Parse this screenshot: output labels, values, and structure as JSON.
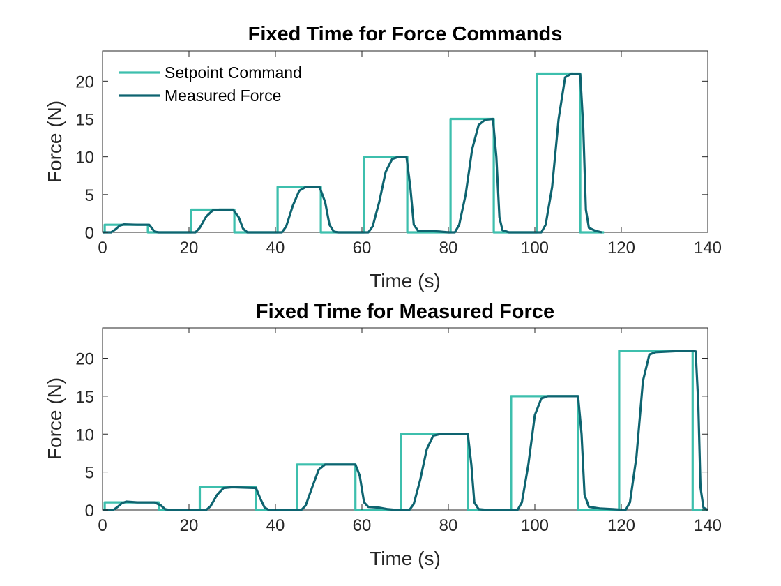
{
  "colors": {
    "setpoint": "#3DBFAD",
    "measured": "#0E6470"
  },
  "chart_data": [
    {
      "type": "line",
      "title": "Fixed Time for Force Commands",
      "xlabel": "Time (s)",
      "ylabel": "Force (N)",
      "xlim": [
        0,
        140
      ],
      "ylim": [
        0,
        24
      ],
      "xticks": [
        0,
        20,
        40,
        60,
        80,
        100,
        120,
        140
      ],
      "yticks": [
        0,
        5,
        10,
        15,
        20
      ],
      "xtick_labels": [
        "0",
        "20",
        "40",
        "60",
        "80",
        "100",
        "120",
        "140"
      ],
      "ytick_labels": [
        "0",
        "5",
        "10",
        "15",
        "20"
      ],
      "grid": false,
      "legend": {
        "position": "top-left",
        "entries": [
          "Setpoint Command",
          "Measured Force"
        ]
      },
      "series": [
        {
          "name": "Setpoint Command",
          "points": [
            [
              0,
              0
            ],
            [
              0.5,
              0
            ],
            [
              0.5,
              1
            ],
            [
              10.5,
              1
            ],
            [
              10.5,
              0
            ],
            [
              20.5,
              0
            ],
            [
              20.5,
              3
            ],
            [
              30.5,
              3
            ],
            [
              30.5,
              0
            ],
            [
              40.5,
              0
            ],
            [
              40.5,
              6
            ],
            [
              50.5,
              6
            ],
            [
              50.5,
              0
            ],
            [
              60.5,
              0
            ],
            [
              60.5,
              10
            ],
            [
              70.5,
              10
            ],
            [
              70.5,
              0
            ],
            [
              80.5,
              0
            ],
            [
              80.5,
              15
            ],
            [
              90.5,
              15
            ],
            [
              90.5,
              0
            ],
            [
              100.5,
              0
            ],
            [
              100.5,
              21
            ],
            [
              110.5,
              21
            ],
            [
              110.5,
              0
            ],
            [
              116,
              0
            ]
          ]
        },
        {
          "name": "Measured Force",
          "points": [
            [
              0,
              0
            ],
            [
              2,
              0
            ],
            [
              3,
              0.4
            ],
            [
              4,
              0.9
            ],
            [
              5,
              1.05
            ],
            [
              8,
              1
            ],
            [
              10.8,
              1
            ],
            [
              11.5,
              0.5
            ],
            [
              12,
              0.1
            ],
            [
              13,
              0
            ],
            [
              20,
              0
            ],
            [
              21.5,
              0
            ],
            [
              22.5,
              0.6
            ],
            [
              24,
              2.1
            ],
            [
              25.5,
              2.9
            ],
            [
              27,
              3
            ],
            [
              30.2,
              3
            ],
            [
              31.5,
              2
            ],
            [
              32.5,
              0.5
            ],
            [
              33.5,
              0
            ],
            [
              40,
              0
            ],
            [
              41.5,
              0
            ],
            [
              42.5,
              0.8
            ],
            [
              44,
              3.5
            ],
            [
              45.5,
              5.5
            ],
            [
              47,
              6
            ],
            [
              50.2,
              6
            ],
            [
              51.5,
              4
            ],
            [
              52.5,
              1
            ],
            [
              53.5,
              0.1
            ],
            [
              54.5,
              0
            ],
            [
              60,
              0
            ],
            [
              61.5,
              0
            ],
            [
              62.5,
              0.8
            ],
            [
              64,
              4
            ],
            [
              65.5,
              8
            ],
            [
              67,
              9.7
            ],
            [
              68.5,
              10
            ],
            [
              70.3,
              10
            ],
            [
              71.2,
              6
            ],
            [
              72,
              1
            ],
            [
              73,
              0.2
            ],
            [
              75,
              0.2
            ],
            [
              78,
              0.1
            ],
            [
              80,
              0
            ],
            [
              81.5,
              0
            ],
            [
              82.5,
              1
            ],
            [
              84,
              5
            ],
            [
              85.5,
              11
            ],
            [
              87,
              14.2
            ],
            [
              88.5,
              14.9
            ],
            [
              90.3,
              15
            ],
            [
              91.1,
              10
            ],
            [
              91.8,
              2
            ],
            [
              92.5,
              0.3
            ],
            [
              94,
              0
            ],
            [
              100,
              0
            ],
            [
              101.5,
              0
            ],
            [
              102.5,
              1
            ],
            [
              104,
              6
            ],
            [
              105.5,
              15
            ],
            [
              107,
              20.5
            ],
            [
              108.5,
              21
            ],
            [
              110.5,
              20.9
            ],
            [
              111.2,
              14
            ],
            [
              111.8,
              3
            ],
            [
              112.5,
              0.6
            ],
            [
              114,
              0.2
            ],
            [
              115.5,
              0
            ]
          ]
        }
      ]
    },
    {
      "type": "line",
      "title": "Fixed Time for Measured Force",
      "xlabel": "Time (s)",
      "ylabel": "Force (N)",
      "xlim": [
        0,
        140
      ],
      "ylim": [
        0,
        24
      ],
      "xticks": [
        0,
        20,
        40,
        60,
        80,
        100,
        120,
        140
      ],
      "yticks": [
        0,
        5,
        10,
        15,
        20
      ],
      "xtick_labels": [
        "0",
        "20",
        "40",
        "60",
        "80",
        "100",
        "120",
        "140"
      ],
      "ytick_labels": [
        "0",
        "5",
        "10",
        "15",
        "20"
      ],
      "grid": false,
      "series": [
        {
          "name": "Setpoint Command",
          "points": [
            [
              0,
              0
            ],
            [
              0.5,
              0
            ],
            [
              0.5,
              1
            ],
            [
              13,
              1
            ],
            [
              13,
              0
            ],
            [
              22.5,
              0
            ],
            [
              22.5,
              3
            ],
            [
              35.5,
              3
            ],
            [
              35.5,
              0
            ],
            [
              45,
              0
            ],
            [
              45,
              6
            ],
            [
              58.5,
              6
            ],
            [
              58.5,
              0
            ],
            [
              69,
              0
            ],
            [
              69,
              10
            ],
            [
              84.5,
              10
            ],
            [
              84.5,
              0
            ],
            [
              94.5,
              0
            ],
            [
              94.5,
              15
            ],
            [
              110,
              15
            ],
            [
              110,
              0
            ],
            [
              119.5,
              0
            ],
            [
              119.5,
              21
            ],
            [
              136.5,
              21
            ],
            [
              136.5,
              0
            ],
            [
              140,
              0
            ]
          ]
        },
        {
          "name": "Measured Force",
          "points": [
            [
              0,
              0
            ],
            [
              2.5,
              0
            ],
            [
              3.5,
              0.4
            ],
            [
              4.5,
              0.9
            ],
            [
              5.5,
              1.1
            ],
            [
              8,
              1
            ],
            [
              12,
              1
            ],
            [
              13.5,
              0.6
            ],
            [
              14.5,
              0.1
            ],
            [
              15.5,
              0
            ],
            [
              24,
              0
            ],
            [
              25,
              0.5
            ],
            [
              26.5,
              2
            ],
            [
              28,
              2.9
            ],
            [
              30,
              3
            ],
            [
              35.5,
              2.9
            ],
            [
              36.5,
              1.5
            ],
            [
              37.5,
              0.3
            ],
            [
              38.5,
              0
            ],
            [
              46,
              0
            ],
            [
              47,
              0.6
            ],
            [
              48.5,
              3
            ],
            [
              50,
              5.3
            ],
            [
              51.5,
              6
            ],
            [
              58.5,
              6
            ],
            [
              59.5,
              4.5
            ],
            [
              60.5,
              1
            ],
            [
              61.5,
              0.4
            ],
            [
              64,
              0.3
            ],
            [
              66,
              0.1
            ],
            [
              68,
              0
            ],
            [
              71,
              0
            ],
            [
              72,
              0.8
            ],
            [
              73.5,
              4
            ],
            [
              75,
              8
            ],
            [
              76.5,
              9.8
            ],
            [
              78,
              10
            ],
            [
              84.5,
              10
            ],
            [
              85.3,
              6
            ],
            [
              86,
              1
            ],
            [
              87,
              0.1
            ],
            [
              89,
              0
            ],
            [
              96,
              0
            ],
            [
              97,
              1
            ],
            [
              98.5,
              6
            ],
            [
              100,
              12.5
            ],
            [
              101.5,
              14.7
            ],
            [
              103,
              15
            ],
            [
              110,
              15
            ],
            [
              110.8,
              10
            ],
            [
              111.5,
              2
            ],
            [
              112.5,
              0.4
            ],
            [
              115,
              0.2
            ],
            [
              118,
              0.1
            ],
            [
              121,
              0
            ],
            [
              122,
              1
            ],
            [
              123.5,
              7
            ],
            [
              125,
              17
            ],
            [
              126.5,
              20.5
            ],
            [
              128,
              20.8
            ],
            [
              135,
              21
            ],
            [
              137.2,
              20.9
            ],
            [
              137.8,
              14
            ],
            [
              138.3,
              3
            ],
            [
              139,
              0.3
            ],
            [
              140,
              0
            ]
          ]
        }
      ]
    }
  ]
}
